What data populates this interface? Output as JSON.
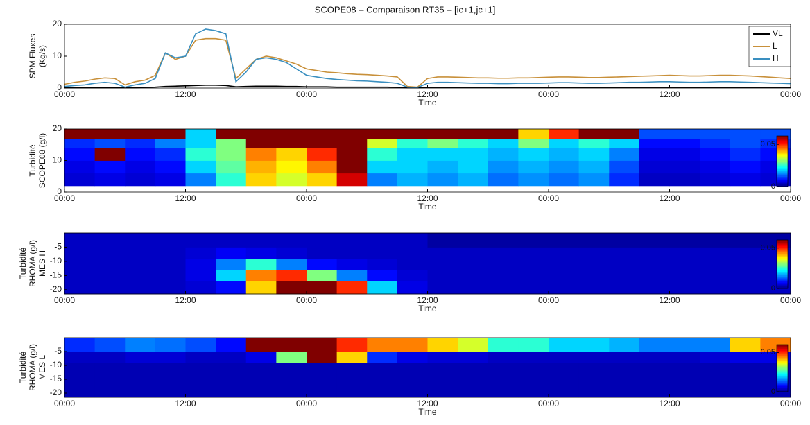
{
  "title": "SCOPE08 – Comparaison RT35 – [ic+1,jc+1]",
  "chart_data": [
    {
      "type": "line",
      "ylabel": [
        "SPM Fluxes",
        "(Kg/s)"
      ],
      "xlabel": "Time",
      "xlim": [
        0,
        72
      ],
      "xticks": [
        {
          "value": 0,
          "label": "00:00"
        },
        {
          "value": 12,
          "label": "12:00"
        },
        {
          "value": 24,
          "label": "00:00"
        },
        {
          "value": 36,
          "label": "12:00"
        },
        {
          "value": 48,
          "label": "00:00"
        },
        {
          "value": 60,
          "label": "12:00"
        },
        {
          "value": 72,
          "label": "00:00"
        }
      ],
      "ylim": [
        0,
        20
      ],
      "yticks": [
        0,
        10,
        20
      ],
      "grid": false,
      "legend": "upper right",
      "x": [
        0,
        1,
        2,
        3,
        4,
        5,
        6,
        7,
        8,
        9,
        10,
        11,
        12,
        13,
        14,
        15,
        16,
        17,
        18,
        19,
        20,
        21,
        22,
        23,
        24,
        25,
        26,
        27,
        28,
        29,
        30,
        31,
        32,
        33,
        34,
        35,
        36,
        37,
        38,
        39,
        40,
        41,
        42,
        43,
        44,
        45,
        46,
        47,
        48,
        49,
        50,
        51,
        52,
        53,
        54,
        55,
        56,
        57,
        58,
        59,
        60,
        61,
        62,
        63,
        64,
        65,
        66,
        67,
        68,
        69,
        70,
        71,
        72
      ],
      "series": [
        {
          "name": "VL",
          "color": "#000000",
          "values": [
            0.1,
            0.1,
            0.1,
            0.1,
            0.1,
            0.1,
            0.1,
            0.1,
            0.2,
            0.3,
            0.5,
            0.6,
            0.7,
            0.8,
            0.9,
            0.9,
            0.8,
            0.4,
            0.5,
            0.6,
            0.6,
            0.6,
            0.5,
            0.5,
            0.4,
            0.4,
            0.4,
            0.3,
            0.3,
            0.3,
            0.3,
            0.3,
            0.3,
            0.2,
            0.1,
            0.1,
            0.2,
            0.2,
            0.2,
            0.2,
            0.2,
            0.2,
            0.2,
            0.2,
            0.2,
            0.2,
            0.2,
            0.2,
            0.2,
            0.2,
            0.2,
            0.2,
            0.2,
            0.2,
            0.2,
            0.2,
            0.2,
            0.2,
            0.2,
            0.2,
            0.2,
            0.2,
            0.2,
            0.2,
            0.2,
            0.2,
            0.2,
            0.2,
            0.2,
            0.2,
            0.2,
            0.2,
            0.2
          ]
        },
        {
          "name": "L",
          "color": "#c8903a",
          "values": [
            1.2,
            1.8,
            2.2,
            2.8,
            3.2,
            3,
            1,
            2,
            2.5,
            4,
            11,
            9,
            10,
            15,
            15.5,
            15.5,
            15,
            3,
            6,
            9,
            10,
            9.5,
            8.5,
            7.5,
            6,
            5.5,
            5,
            4.8,
            4.5,
            4.3,
            4.2,
            4,
            3.8,
            3.5,
            0.5,
            0.3,
            3,
            3.5,
            3.5,
            3.4,
            3.3,
            3.2,
            3.2,
            3.1,
            3.1,
            3.2,
            3.2,
            3.3,
            3.4,
            3.5,
            3.5,
            3.4,
            3.3,
            3.3,
            3.4,
            3.5,
            3.6,
            3.7,
            3.8,
            3.9,
            4,
            3.9,
            3.8,
            3.8,
            3.9,
            4,
            4,
            3.9,
            3.8,
            3.6,
            3.4,
            3.2,
            3.0
          ]
        },
        {
          "name": "H",
          "color": "#3a8fc0",
          "values": [
            0.5,
            0.8,
            1.0,
            1.5,
            1.8,
            1.5,
            0.3,
            1.0,
            1.5,
            3,
            11,
            9.5,
            10,
            17,
            18.5,
            18,
            17,
            2,
            5,
            9,
            9.5,
            9,
            8,
            6,
            4,
            3.5,
            3,
            2.7,
            2.5,
            2.3,
            2.2,
            2,
            1.8,
            1.5,
            0.3,
            0.2,
            1.5,
            1.8,
            1.8,
            1.7,
            1.6,
            1.5,
            1.5,
            1.4,
            1.4,
            1.5,
            1.5,
            1.5,
            1.6,
            1.7,
            1.7,
            1.6,
            1.5,
            1.5,
            1.6,
            1.7,
            1.8,
            1.8,
            1.9,
            2,
            2,
            1.9,
            1.8,
            1.8,
            1.9,
            2,
            2,
            1.9,
            1.8,
            1.7,
            1.6,
            1.5,
            1.4
          ]
        }
      ]
    },
    {
      "type": "heatmap",
      "ylabel": [
        "Turbidité",
        "SCOPE08 (g/l)"
      ],
      "xlabel": "Time",
      "xlim": [
        0,
        72
      ],
      "xticks": [
        {
          "value": 0,
          "label": "00:00"
        },
        {
          "value": 12,
          "label": "12:00"
        },
        {
          "value": 24,
          "label": "00:00"
        },
        {
          "value": 36,
          "label": "12:00"
        },
        {
          "value": 48,
          "label": "00:00"
        },
        {
          "value": 60,
          "label": "12:00"
        },
        {
          "value": 72,
          "label": "00:00"
        }
      ],
      "ylim": [
        0,
        20
      ],
      "yticks": [
        0,
        10,
        20
      ],
      "colormap": "jet",
      "clim": [
        0,
        0.06
      ],
      "cticks": [
        0,
        0.05
      ],
      "xbins": [
        0,
        3,
        6,
        9,
        12,
        15,
        18,
        21,
        24,
        27,
        30,
        33,
        36,
        39,
        42,
        45,
        48,
        51,
        54,
        57,
        60,
        63,
        66,
        69,
        72
      ],
      "ybins": [
        2,
        6,
        10,
        14,
        17,
        20
      ],
      "z": [
        [
          0.005,
          0.006,
          0.005,
          0.006,
          0.015,
          0.025,
          0.04,
          0.035,
          0.04,
          0.055,
          0.015,
          0.018,
          0.016,
          0.018,
          0.014,
          0.016,
          0.014,
          0.016,
          0.01,
          0.004,
          0.004,
          0.005,
          0.006,
          0.005
        ],
        [
          0.006,
          0.008,
          0.006,
          0.008,
          0.02,
          0.028,
          0.042,
          0.038,
          0.045,
          0.06,
          0.02,
          0.02,
          0.018,
          0.02,
          0.016,
          0.018,
          0.016,
          0.018,
          0.012,
          0.005,
          0.005,
          0.006,
          0.008,
          0.006
        ],
        [
          0.008,
          0.06,
          0.008,
          0.01,
          0.025,
          0.03,
          0.045,
          0.04,
          0.05,
          0.06,
          0.025,
          0.02,
          0.02,
          0.02,
          0.018,
          0.02,
          0.018,
          0.02,
          0.015,
          0.006,
          0.006,
          0.008,
          0.01,
          0.008
        ],
        [
          0.01,
          0.012,
          0.01,
          0.015,
          0.02,
          0.03,
          0.06,
          0.06,
          0.06,
          0.06,
          0.035,
          0.025,
          0.03,
          0.025,
          0.02,
          0.03,
          0.02,
          0.025,
          0.02,
          0.008,
          0.008,
          0.01,
          0.012,
          0.01
        ],
        [
          0.06,
          0.06,
          0.06,
          0.06,
          0.02,
          0.06,
          0.06,
          0.06,
          0.06,
          0.06,
          0.06,
          0.06,
          0.06,
          0.06,
          0.06,
          0.04,
          0.05,
          0.06,
          0.06,
          0.012,
          0.012,
          0.012,
          0.012,
          0.012
        ]
      ]
    },
    {
      "type": "heatmap",
      "ylabel": [
        "Turbidité",
        "RHOMA (g/l)",
        "MES H"
      ],
      "xlabel": "Time",
      "xlim": [
        0,
        72
      ],
      "xticks": [
        {
          "value": 0,
          "label": "00:00"
        },
        {
          "value": 12,
          "label": "12:00"
        },
        {
          "value": 24,
          "label": "00:00"
        },
        {
          "value": 36,
          "label": "12:00"
        },
        {
          "value": 48,
          "label": "00:00"
        },
        {
          "value": 60,
          "label": "12:00"
        },
        {
          "value": 72,
          "label": "00:00"
        }
      ],
      "ylim": [
        -21.5,
        0
      ],
      "yticks": [
        -5,
        -10,
        -15,
        -20
      ],
      "colormap": "jet",
      "clim": [
        0,
        0.06
      ],
      "cticks": [
        0,
        0.05
      ],
      "xbins": [
        0,
        3,
        6,
        9,
        12,
        15,
        18,
        21,
        24,
        27,
        30,
        33,
        36,
        39,
        42,
        45,
        48,
        51,
        54,
        57,
        60,
        63,
        66,
        69,
        72
      ],
      "ybins": [
        -21.5,
        -17,
        -13,
        -9,
        -5,
        0
      ],
      "z": [
        [
          0.004,
          0.004,
          0.004,
          0.004,
          0.005,
          0.008,
          0.04,
          0.06,
          0.06,
          0.05,
          0.02,
          0.006,
          0.004,
          0.004,
          0.004,
          0.004,
          0.004,
          0.004,
          0.004,
          0.004,
          0.004,
          0.004,
          0.004,
          0.004
        ],
        [
          0.004,
          0.004,
          0.004,
          0.004,
          0.006,
          0.02,
          0.045,
          0.05,
          0.03,
          0.015,
          0.008,
          0.005,
          0.004,
          0.004,
          0.004,
          0.004,
          0.004,
          0.004,
          0.004,
          0.004,
          0.004,
          0.004,
          0.004,
          0.004
        ],
        [
          0.004,
          0.004,
          0.004,
          0.004,
          0.006,
          0.015,
          0.025,
          0.015,
          0.008,
          0.006,
          0.005,
          0.004,
          0.004,
          0.004,
          0.004,
          0.004,
          0.004,
          0.004,
          0.004,
          0.004,
          0.004,
          0.004,
          0.004,
          0.004
        ],
        [
          0.004,
          0.004,
          0.004,
          0.004,
          0.005,
          0.007,
          0.006,
          0.005,
          0.004,
          0.004,
          0.004,
          0.004,
          0.004,
          0.004,
          0.004,
          0.004,
          0.004,
          0.004,
          0.004,
          0.004,
          0.004,
          0.004,
          0.004,
          0.004
        ],
        [
          0.004,
          0.004,
          0.004,
          0.004,
          0.004,
          0.004,
          0.004,
          0.004,
          0.004,
          0.004,
          0.004,
          0.004,
          0.002,
          0.002,
          0.002,
          0.002,
          0.002,
          0.002,
          0.002,
          0.002,
          0.002,
          0.002,
          0.002,
          0.002
        ]
      ]
    },
    {
      "type": "heatmap",
      "ylabel": [
        "Turbidité",
        "RHOMA (g/l)",
        "MES L"
      ],
      "xlabel": "Time",
      "xlim": [
        0,
        72
      ],
      "xticks": [
        {
          "value": 0,
          "label": "00:00"
        },
        {
          "value": 12,
          "label": "12:00"
        },
        {
          "value": 24,
          "label": "00:00"
        },
        {
          "value": 36,
          "label": "12:00"
        },
        {
          "value": 48,
          "label": "00:00"
        },
        {
          "value": 60,
          "label": "12:00"
        },
        {
          "value": 72,
          "label": "00:00"
        }
      ],
      "ylim": [
        -21.5,
        0
      ],
      "yticks": [
        -5,
        -10,
        -15,
        -20
      ],
      "colormap": "jet",
      "clim": [
        0,
        0.06
      ],
      "cticks": [
        0,
        0.05
      ],
      "xbins": [
        0,
        3,
        6,
        9,
        12,
        15,
        18,
        21,
        24,
        27,
        30,
        33,
        36,
        39,
        42,
        45,
        48,
        51,
        54,
        57,
        60,
        63,
        66,
        69,
        72
      ],
      "ybins": [
        -21.5,
        -17,
        -13,
        -9,
        -5,
        0
      ],
      "z": [
        [
          0.003,
          0.003,
          0.003,
          0.003,
          0.003,
          0.003,
          0.003,
          0.003,
          0.003,
          0.003,
          0.003,
          0.003,
          0.003,
          0.003,
          0.003,
          0.003,
          0.003,
          0.003,
          0.003,
          0.003,
          0.003,
          0.003,
          0.003,
          0.003
        ],
        [
          0.003,
          0.003,
          0.003,
          0.003,
          0.003,
          0.003,
          0.003,
          0.003,
          0.003,
          0.003,
          0.003,
          0.003,
          0.003,
          0.003,
          0.003,
          0.003,
          0.003,
          0.003,
          0.003,
          0.003,
          0.003,
          0.003,
          0.003,
          0.003
        ],
        [
          0.003,
          0.003,
          0.003,
          0.003,
          0.003,
          0.003,
          0.003,
          0.003,
          0.003,
          0.003,
          0.003,
          0.003,
          0.003,
          0.003,
          0.003,
          0.003,
          0.003,
          0.003,
          0.003,
          0.003,
          0.003,
          0.003,
          0.003,
          0.003
        ],
        [
          0.004,
          0.004,
          0.005,
          0.005,
          0.004,
          0.004,
          0.006,
          0.03,
          0.06,
          0.04,
          0.01,
          0.006,
          0.005,
          0.005,
          0.004,
          0.004,
          0.004,
          0.004,
          0.004,
          0.004,
          0.004,
          0.005,
          0.006,
          0.006
        ],
        [
          0.01,
          0.012,
          0.015,
          0.014,
          0.012,
          0.008,
          0.06,
          0.06,
          0.06,
          0.05,
          0.045,
          0.045,
          0.04,
          0.035,
          0.025,
          0.025,
          0.02,
          0.02,
          0.018,
          0.015,
          0.015,
          0.015,
          0.04,
          0.045
        ]
      ]
    }
  ]
}
